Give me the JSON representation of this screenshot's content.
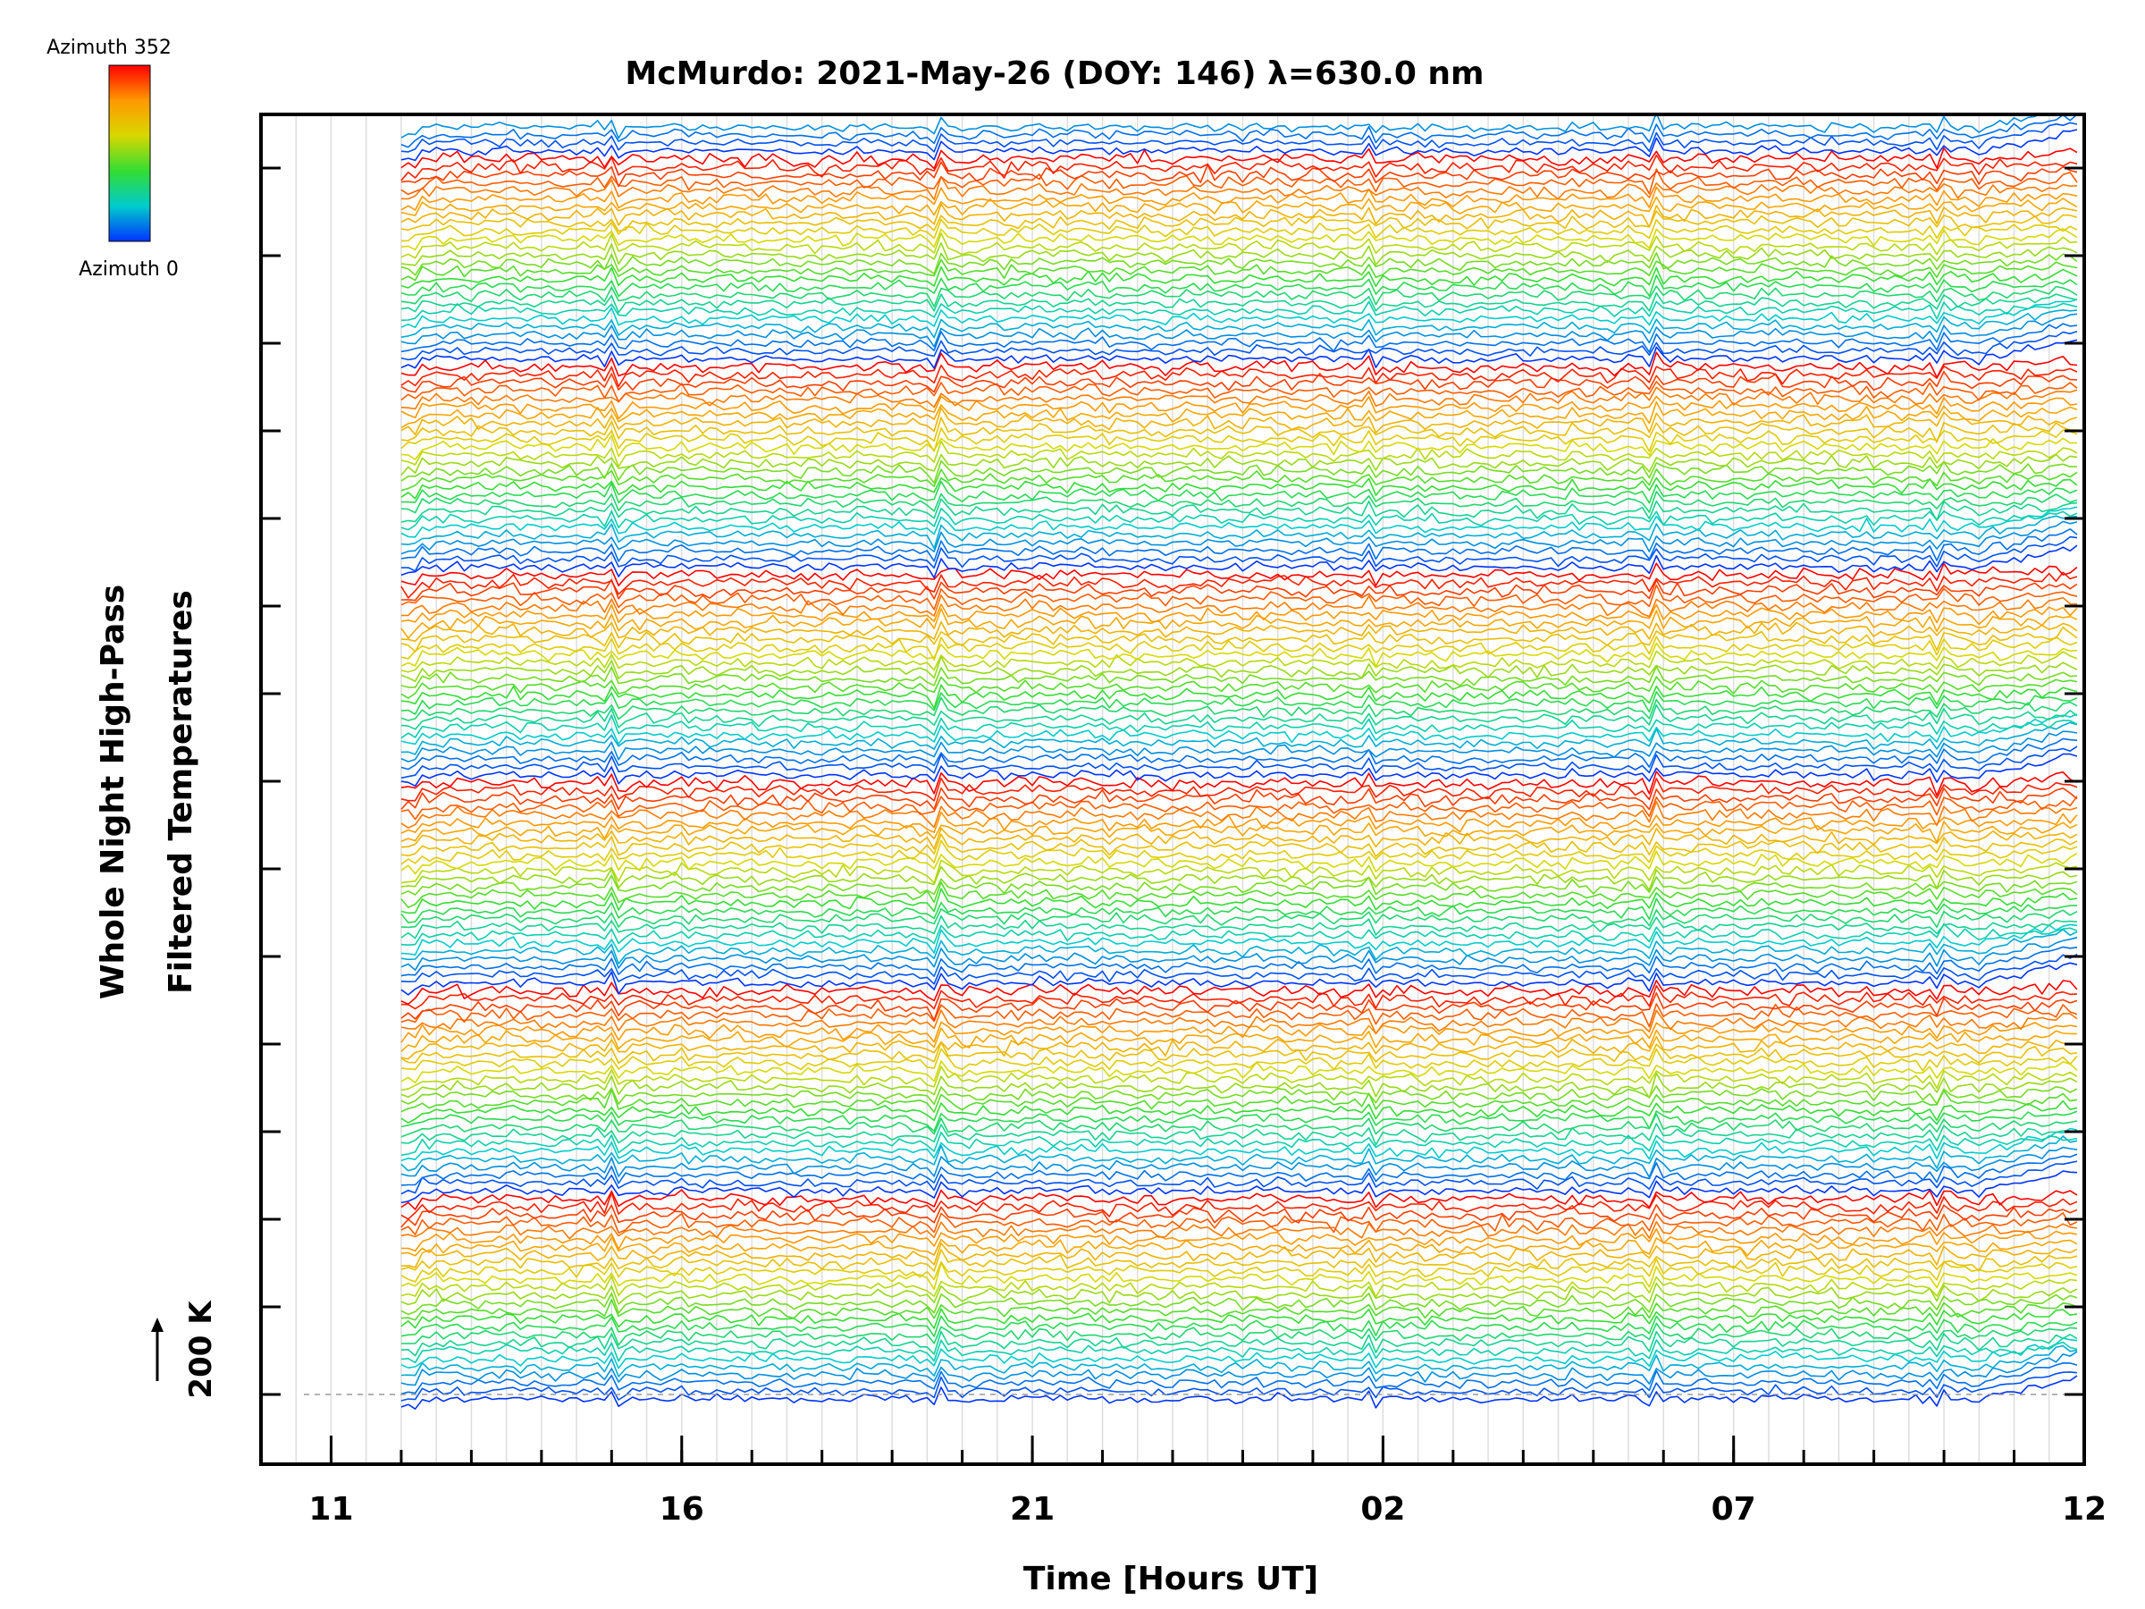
{
  "chart_data": {
    "type": "line",
    "title": "McMurdo: 2021-May-26 (DOY: 146) λ=630.0 nm",
    "xlabel": "Time [Hours UT]",
    "ylabel_lines": [
      "Whole Night High-Pass",
      "Filtered Temperatures"
    ],
    "x_tick_labels": [
      "11",
      "16",
      "21",
      "02",
      "07",
      "12"
    ],
    "x_tick_hours": [
      11,
      16,
      21,
      26,
      31,
      36
    ],
    "xlim_hours": [
      10,
      36
    ],
    "data_start_hour": 12,
    "colorbar": {
      "top_label": "Azimuth 352",
      "bottom_label": "Azimuth 0",
      "colors": [
        "#ff0000",
        "#ff9900",
        "#d8d800",
        "#33dd33",
        "#00cccc",
        "#0033ff"
      ]
    },
    "scale_marker": "200 K",
    "series_count": 160,
    "grid": true,
    "legend": "colorbar top-left"
  }
}
